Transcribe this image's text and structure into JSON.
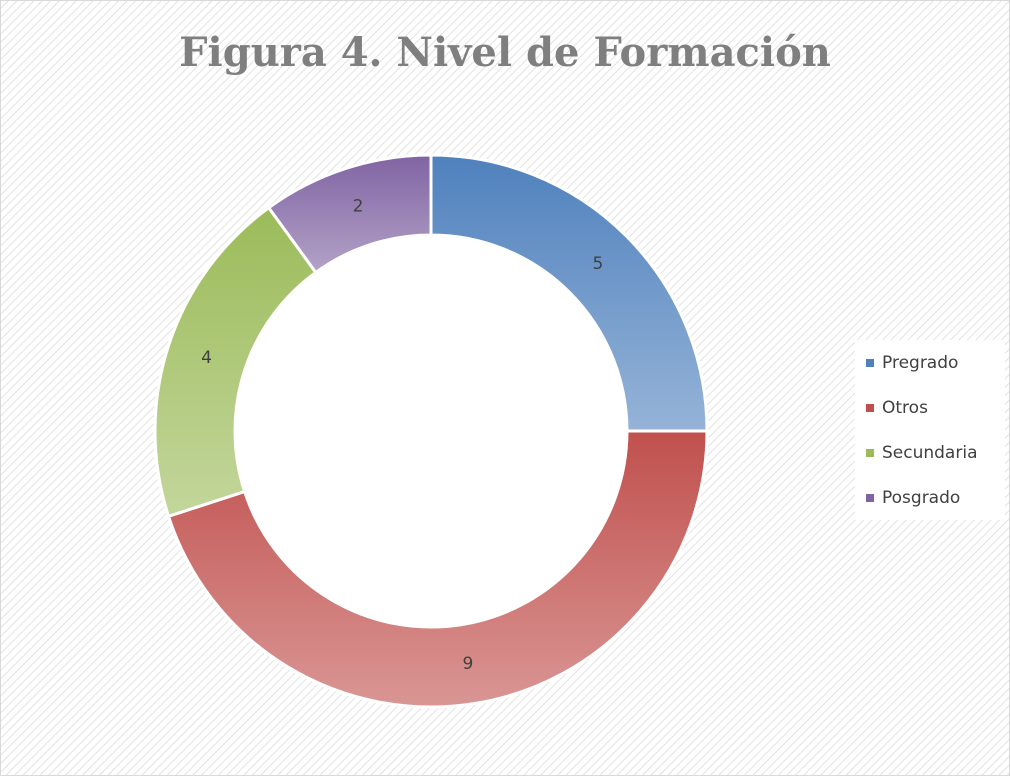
{
  "chart_data": {
    "type": "pie",
    "donut": true,
    "title": "Figura 4. Nivel de Formación",
    "categories": [
      "Pregrado",
      "Otros",
      "Secundaria",
      "Posgrado"
    ],
    "values": [
      5,
      9,
      4,
      2
    ],
    "colors": [
      "#4f81bd",
      "#c0504d",
      "#9bbb59",
      "#8064a2"
    ],
    "legend": "right"
  }
}
